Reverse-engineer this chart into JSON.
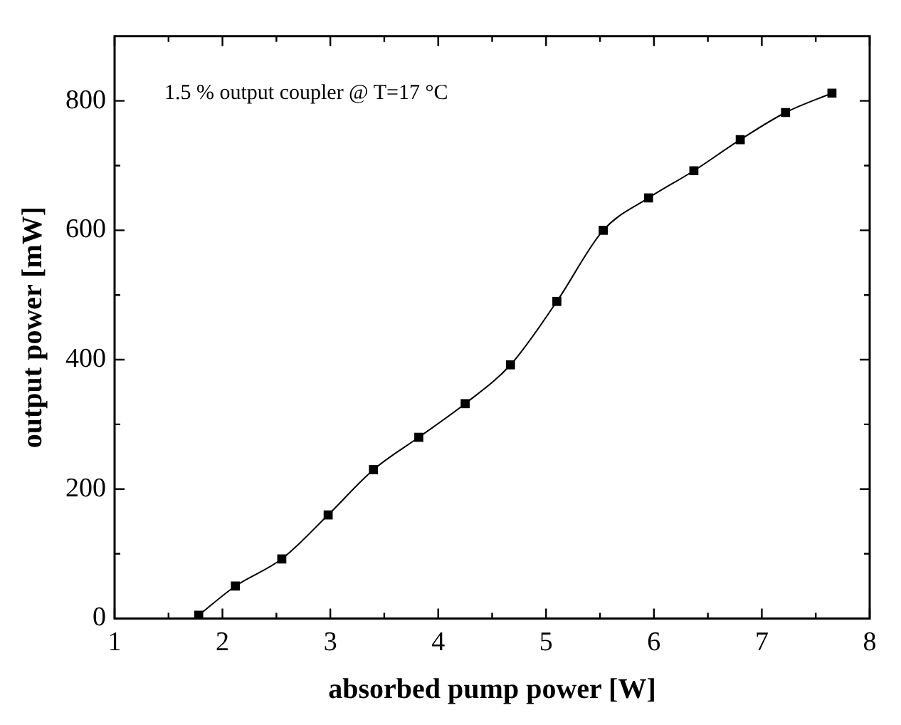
{
  "chart_data": {
    "type": "line",
    "xlabel": "absorbed pump power [W]",
    "ylabel": "output power [mW]",
    "annotations": [
      "1.5 % output coupler @ T=17 °C"
    ],
    "x": [
      1.78,
      2.12,
      2.55,
      2.98,
      3.4,
      3.82,
      4.25,
      4.67,
      5.1,
      5.53,
      5.95,
      6.37,
      6.8,
      7.22,
      7.65
    ],
    "series": [
      {
        "color": "#000000",
        "values": [
          5,
          50,
          92,
          160,
          230,
          280,
          332,
          392,
          490,
          600,
          650,
          692,
          740,
          782,
          812
        ]
      }
    ],
    "xlim": [
      1,
      8
    ],
    "xticks": [
      1,
      {
        "value": 1.5,
        "label": null
      },
      2,
      {
        "value": 2.5,
        "label": null
      },
      3,
      {
        "value": 3.5,
        "label": null
      },
      4,
      {
        "value": 4.5,
        "label": null
      },
      5,
      {
        "value": 5.5,
        "label": null
      },
      6,
      {
        "value": 6.5,
        "label": null
      },
      7,
      {
        "value": 7.5,
        "label": null
      },
      8
    ],
    "ylim": [
      0,
      900
    ],
    "yticks": [
      0,
      {
        "value": 100,
        "label": null
      },
      200,
      {
        "value": 300,
        "label": null
      },
      400,
      {
        "value": 500,
        "label": null
      },
      600,
      {
        "value": 700,
        "label": null
      },
      800
    ],
    "grid": false,
    "legend": false,
    "marker": "square",
    "line_style": "solid"
  }
}
